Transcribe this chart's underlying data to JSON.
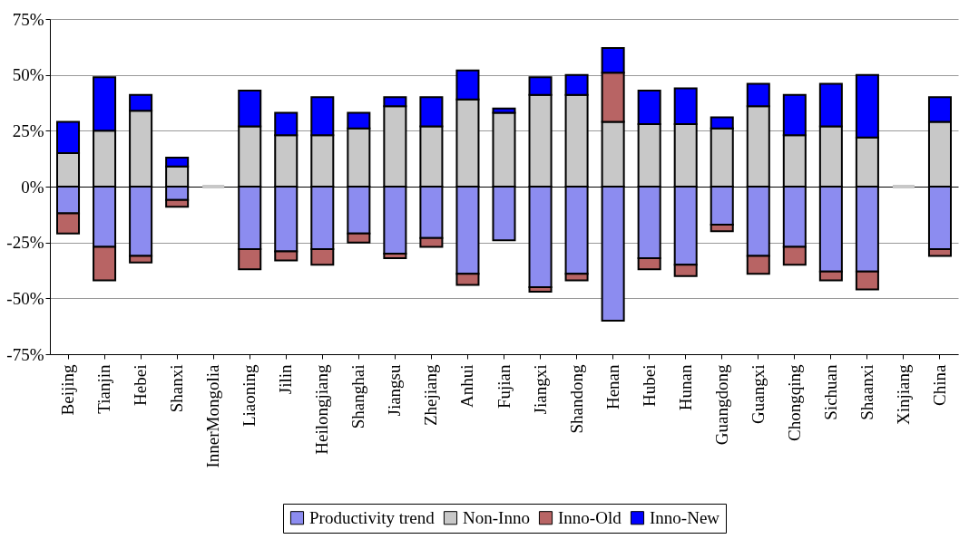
{
  "chart_data": {
    "type": "bar",
    "stacked": true,
    "categories": [
      "Beijing",
      "Tianjin",
      "Hebei",
      "Shanxi",
      "InnerMongolia",
      "Liaoning",
      "Jilin",
      "Heilongjiang",
      "Shanghai",
      "Jiangsu",
      "Zhejiang",
      "Anhui",
      "Fujian",
      "Jiangxi",
      "Shandong",
      "Henan",
      "Hubei",
      "Hunan",
      "Guangdong",
      "Guangxi",
      "Chongqing",
      "Sichuan",
      "Shaanxi",
      "Xinjiang",
      "China"
    ],
    "series": [
      {
        "name": "Productivity trend",
        "color": "#8c8cf0",
        "values": [
          -12,
          -27,
          -31,
          -6,
          null,
          -28,
          -29,
          -28,
          -21,
          -30,
          -23,
          -39,
          -24,
          -45,
          -39,
          -60,
          -32,
          -35,
          -17,
          -31,
          -27,
          -38,
          -38,
          null,
          -28
        ]
      },
      {
        "name": "Non-Inno",
        "color": "#c8c8c8",
        "values": [
          15,
          25,
          34,
          9,
          0,
          27,
          23,
          23,
          26,
          36,
          27,
          39,
          33,
          41,
          41,
          29,
          28,
          28,
          26,
          36,
          23,
          27,
          22,
          0,
          29
        ]
      },
      {
        "name": "Inno-Old",
        "color": "#b86464",
        "values": [
          -9,
          -15,
          -3,
          -3,
          null,
          -9,
          -4,
          -7,
          -4,
          -2,
          -4,
          -5,
          null,
          -2,
          -3,
          22,
          -5,
          -5,
          -3,
          -8,
          -8,
          -4,
          -8,
          null,
          -3
        ]
      },
      {
        "name": "Inno-New",
        "color": "#0000ff",
        "values": [
          14,
          24,
          7,
          4,
          null,
          16,
          10,
          17,
          7,
          4,
          13,
          13,
          2,
          8,
          9,
          11,
          15,
          16,
          5,
          10,
          18,
          19,
          28,
          null,
          11
        ]
      }
    ],
    "ylim": [
      -75,
      75
    ],
    "yticks": [
      {
        "value": -75,
        "label": "-75%"
      },
      {
        "value": -50,
        "label": "-50%"
      },
      {
        "value": -25,
        "label": "-25%"
      },
      {
        "value": 0,
        "label": "0%"
      },
      {
        "value": 25,
        "label": "25%"
      },
      {
        "value": 50,
        "label": "50%"
      },
      {
        "value": 75,
        "label": "75%"
      }
    ],
    "grid": "y",
    "legend": "bottom"
  }
}
